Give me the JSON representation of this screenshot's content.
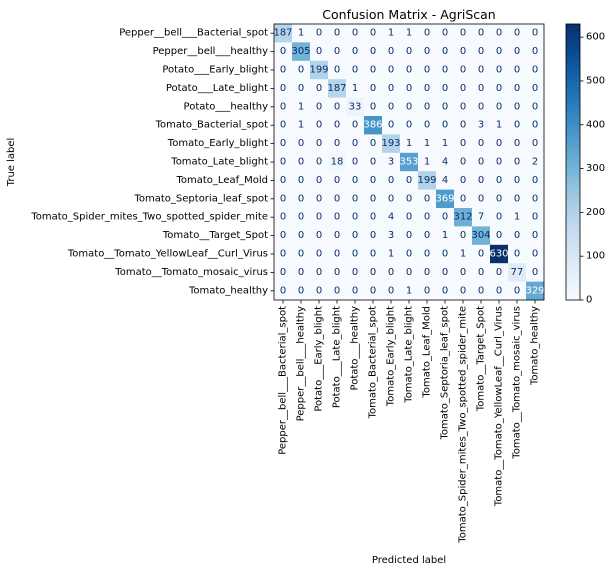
{
  "chart_data": {
    "type": "heatmap",
    "title": "Confusion Matrix - AgriScan",
    "xlabel": "Predicted label",
    "ylabel": "True label",
    "labels": [
      "Pepper__bell___Bacterial_spot",
      "Pepper__bell___healthy",
      "Potato___Early_blight",
      "Potato___Late_blight",
      "Potato___healthy",
      "Tomato_Bacterial_spot",
      "Tomato_Early_blight",
      "Tomato_Late_blight",
      "Tomato_Leaf_Mold",
      "Tomato_Septoria_leaf_spot",
      "Tomato_Spider_mites_Two_spotted_spider_mite",
      "Tomato__Target_Spot",
      "Tomato__Tomato_YellowLeaf__Curl_Virus",
      "Tomato__Tomato_mosaic_virus",
      "Tomato_healthy"
    ],
    "matrix": [
      [
        187,
        1,
        0,
        0,
        0,
        0,
        1,
        1,
        0,
        0,
        0,
        0,
        0,
        0,
        0
      ],
      [
        0,
        305,
        0,
        0,
        0,
        0,
        0,
        0,
        0,
        0,
        0,
        0,
        0,
        0,
        0
      ],
      [
        0,
        0,
        199,
        0,
        0,
        0,
        0,
        0,
        0,
        0,
        0,
        0,
        0,
        0,
        0
      ],
      [
        0,
        0,
        0,
        187,
        1,
        0,
        0,
        0,
        0,
        0,
        0,
        0,
        0,
        0,
        0
      ],
      [
        0,
        1,
        0,
        0,
        33,
        0,
        0,
        0,
        0,
        0,
        0,
        0,
        0,
        0,
        0
      ],
      [
        0,
        1,
        0,
        0,
        0,
        386,
        0,
        0,
        0,
        0,
        0,
        3,
        1,
        0,
        0
      ],
      [
        0,
        0,
        0,
        0,
        0,
        0,
        193,
        1,
        1,
        1,
        0,
        0,
        0,
        0,
        0
      ],
      [
        0,
        0,
        0,
        18,
        0,
        0,
        3,
        353,
        1,
        4,
        0,
        0,
        0,
        0,
        2
      ],
      [
        0,
        0,
        0,
        0,
        0,
        0,
        0,
        0,
        199,
        4,
        0,
        0,
        0,
        0,
        0
      ],
      [
        0,
        0,
        0,
        0,
        0,
        0,
        0,
        0,
        0,
        369,
        0,
        0,
        0,
        0,
        0
      ],
      [
        0,
        0,
        0,
        0,
        0,
        0,
        4,
        0,
        0,
        0,
        312,
        7,
        0,
        1,
        0
      ],
      [
        0,
        0,
        0,
        0,
        0,
        0,
        3,
        0,
        0,
        1,
        0,
        304,
        0,
        0,
        0
      ],
      [
        0,
        0,
        0,
        0,
        0,
        0,
        1,
        0,
        0,
        0,
        1,
        0,
        630,
        0,
        0
      ],
      [
        0,
        0,
        0,
        0,
        0,
        0,
        0,
        0,
        0,
        0,
        0,
        0,
        0,
        77,
        0
      ],
      [
        0,
        0,
        0,
        0,
        0,
        0,
        0,
        1,
        0,
        0,
        0,
        0,
        0,
        0,
        329
      ]
    ],
    "colormap": "Blues",
    "colorbar": {
      "min": 0,
      "max": 630,
      "ticks": [
        0,
        100,
        200,
        300,
        400,
        500,
        600
      ]
    },
    "grid": false
  }
}
